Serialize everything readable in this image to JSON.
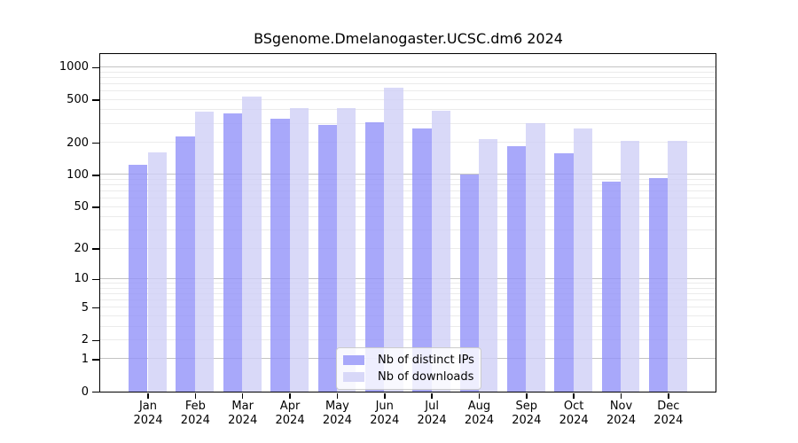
{
  "title": "BSgenome.Dmelanogaster.UCSC.dm6 2024",
  "colors": {
    "bar_distinct_ips_solid": "#a8a8fa",
    "bar_downloads_solid": "#d8d8f8",
    "bar_distinct_ips_fill": "rgba(146,146,249,0.8)",
    "bar_downloads_fill": "rgba(208,208,246,0.8)",
    "grid_minor": "#ebebeb",
    "grid_major": "#c3c3c3",
    "axis": "#000000",
    "legend_border": "#cccccc"
  },
  "legend": {
    "items": [
      {
        "label": "Nb of distinct IPs",
        "swatch": "#a8a8fa"
      },
      {
        "label": "Nb of downloads",
        "swatch": "#d8d8f8"
      }
    ]
  },
  "chart_data": {
    "type": "bar",
    "title": "BSgenome.Dmelanogaster.UCSC.dm6 2024",
    "categories": [
      "Jan",
      "Feb",
      "Mar",
      "Apr",
      "May",
      "Jun",
      "Jul",
      "Aug",
      "Sep",
      "Oct",
      "Nov",
      "Dec"
    ],
    "year": "2024",
    "series": [
      {
        "name": "Nb of distinct IPs",
        "color": "#a8a8fa",
        "values": [
          125,
          230,
          375,
          335,
          290,
          312,
          270,
          100,
          186,
          160,
          87,
          93
        ]
      },
      {
        "name": "Nb of downloads",
        "color": "#d8d8f8",
        "values": [
          163,
          390,
          540,
          420,
          418,
          650,
          395,
          215,
          303,
          272,
          209,
          209
        ]
      }
    ],
    "xlabel": "",
    "ylabel": "",
    "y_scale": "log10(1+x)",
    "y_ticks": [
      0,
      1,
      2,
      5,
      10,
      20,
      50,
      100,
      200,
      500,
      1000
    ],
    "ylim": [
      0,
      1330
    ],
    "grid": "on",
    "grid_minor_values": "2-9, 20-90, 200-900",
    "grid_major_values": "1, 10, 100, 1000",
    "legend_position": "inside-bottom-center"
  }
}
